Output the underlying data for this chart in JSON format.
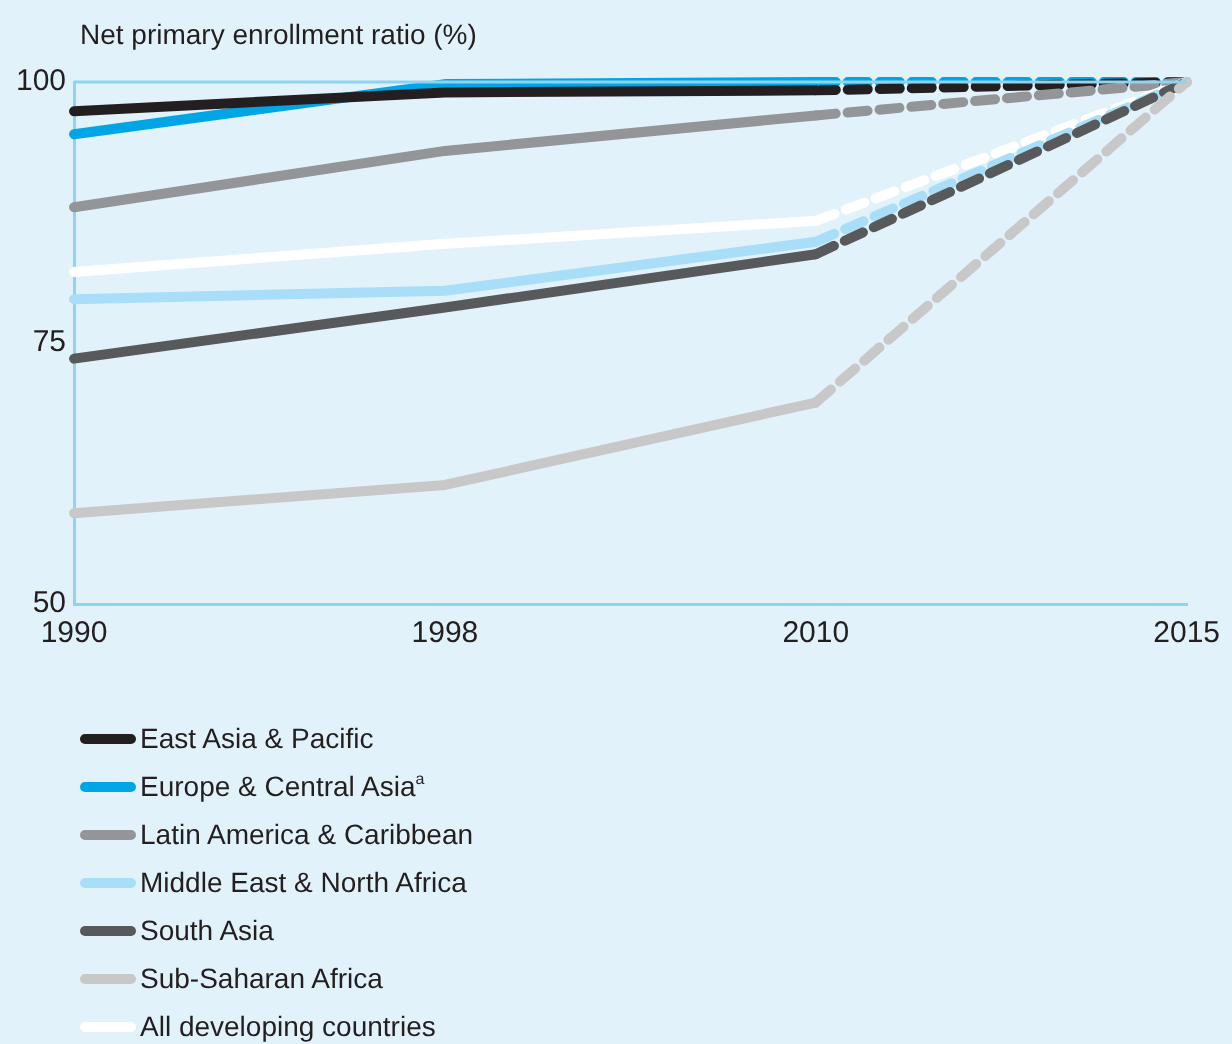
{
  "chart_data": {
    "type": "line",
    "ylabel": "Net primary enrollment ratio (%)",
    "categories": [
      "1990",
      "1998",
      "2010",
      "2015"
    ],
    "ylim": [
      50,
      100
    ],
    "yticks": [
      50,
      75,
      100
    ],
    "grid": false,
    "legend": "bottom",
    "marker": "none",
    "series": [
      {
        "name": "East Asia & Pacific",
        "color": "#231f20",
        "values": [
          97.2,
          99,
          99.2,
          null
        ],
        "line_style": "solid"
      },
      {
        "name": "Europe & Central Asia$^{a}$",
        "color": "#00a5e6",
        "values": [
          95,
          99.8,
          100,
          null
        ],
        "line_style": "solid"
      },
      {
        "name": "Latin America & Caribbean",
        "color": "#939598",
        "values": [
          88,
          93.4,
          96.8,
          null
        ],
        "line_style": "solid"
      },
      {
        "name": "Middle East & North Africa",
        "color": "#a8def7",
        "values": [
          79.2,
          80,
          84.7,
          null
        ],
        "line_style": "solid"
      },
      {
        "name": "South Asia",
        "color": "#58595b",
        "values": [
          73.5,
          78.4,
          83.5,
          null
        ],
        "line_style": "solid"
      },
      {
        "name": "Sub-Saharan Africa",
        "color": "#c8c8c8",
        "values": [
          58.7,
          61.4,
          69.3,
          null
        ],
        "line_style": "solid"
      },
      {
        "name": "All developing countries",
        "color": "#ffffff",
        "values": [
          81.8,
          84.5,
          86.7,
          null
        ],
        "line_style": "solid"
      },
      {
        "color": "#c8c8c8",
        "values": [
          null,
          null,
          69.3,
          100
        ],
        "line_style": "dashed"
      },
      {
        "color": "#58595b",
        "values": [
          null,
          null,
          83.5,
          100
        ],
        "line_style": "dashed"
      },
      {
        "color": "#a8def7",
        "values": [
          null,
          null,
          84.7,
          100
        ],
        "line_style": "dashed"
      },
      {
        "color": "#ffffff",
        "values": [
          null,
          null,
          86.7,
          100
        ],
        "line_style": "dashed"
      },
      {
        "color": "#939598",
        "values": [
          null,
          null,
          96.8,
          100
        ],
        "line_style": "dashed"
      },
      {
        "color": "#231f20",
        "values": [
          null,
          null,
          99.2,
          100
        ],
        "line_style": "dashed"
      },
      {
        "color": "#00a5e6",
        "values": [
          null,
          null,
          100,
          100
        ],
        "line_style": "dashed"
      }
    ]
  }
}
